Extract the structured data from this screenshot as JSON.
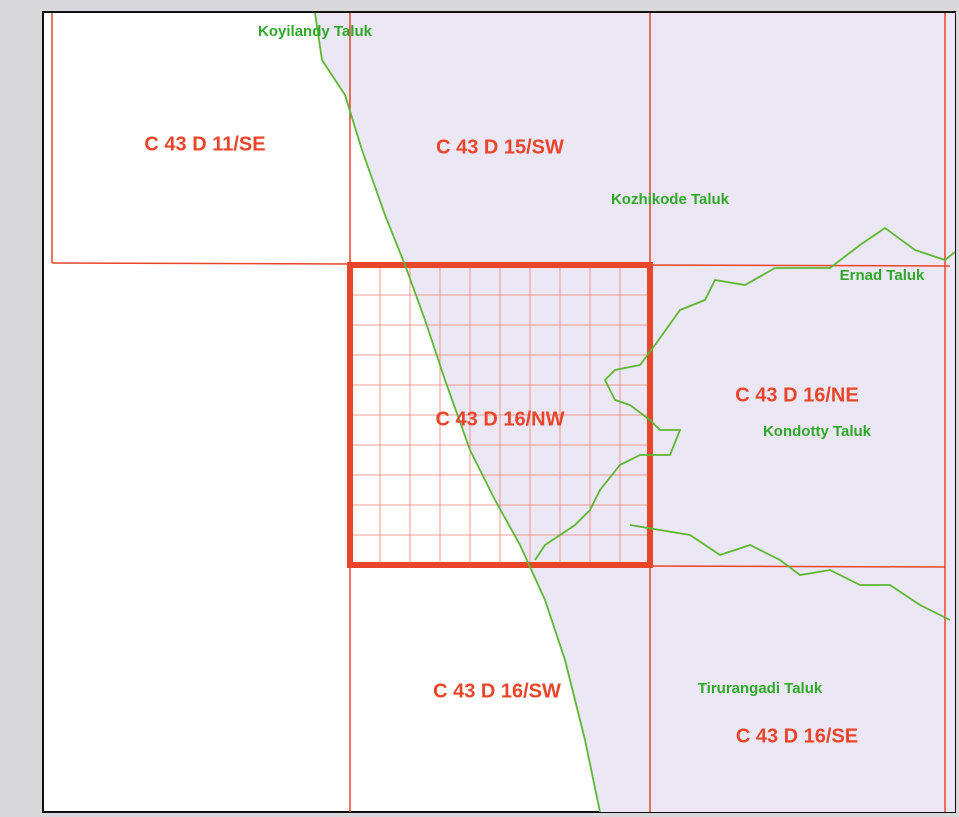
{
  "sheets": [
    "C 43 D 11/SE",
    "C 43 D 15/SW",
    "C 43 D 16/NW",
    "C 43 D 16/NE",
    "C 43 D 16/SW",
    "C 43 D 16/SE"
  ],
  "taluks": [
    "Koyilandy Taluk",
    "Kozhikode Taluk",
    "Ernad Taluk",
    "Kondotty Taluk",
    "Tirurangadi Taluk"
  ]
}
